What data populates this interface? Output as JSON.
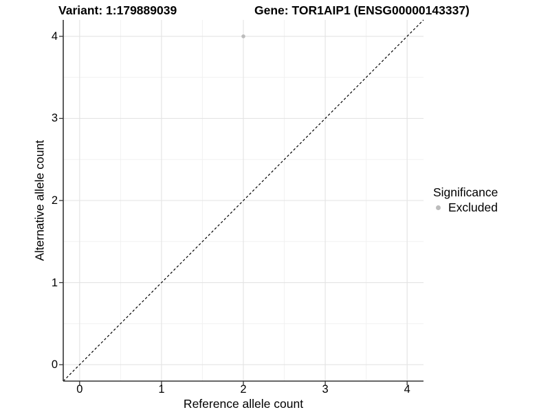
{
  "figure": {
    "titles": {
      "variant": "Variant: 1:179889039",
      "gene": "Gene: TOR1AIP1 (ENSG00000143337)"
    }
  },
  "axes": {
    "x": {
      "label": "Reference allele count",
      "ticks": [
        "0",
        "1",
        "2",
        "3",
        "4"
      ]
    },
    "y": {
      "label": "Alternative allele count",
      "ticks": [
        "0",
        "1",
        "2",
        "3",
        "4"
      ]
    }
  },
  "legend": {
    "title": "Significance",
    "items": [
      {
        "label": "Excluded",
        "color": "#bcbcbc"
      }
    ]
  },
  "colors": {
    "grid_major": "#e3e3e3",
    "grid_minor": "#f1f1f1",
    "axis_line": "#333333",
    "reference_line": "#000000",
    "excluded_point": "#bcbcbc"
  },
  "chart_data": {
    "type": "scatter",
    "title": "Variant: 1:179889039 | Gene: TOR1AIP1 (ENSG00000143337)",
    "xlabel": "Reference allele count",
    "ylabel": "Alternative allele count",
    "xlim": [
      -0.2,
      4.2
    ],
    "ylim": [
      -0.2,
      4.2
    ],
    "x_ticks": [
      0,
      1,
      2,
      3,
      4
    ],
    "y_ticks": [
      0,
      1,
      2,
      3,
      4
    ],
    "minor_gridlines": [
      0.5,
      1.5,
      2.5,
      3.5
    ],
    "grid": "major and minor gridlines, light gray on white",
    "legend_position": "right",
    "series": [
      {
        "name": "Excluded",
        "color": "#bcbcbc",
        "points": [
          {
            "x": 2,
            "y": 4
          }
        ]
      }
    ],
    "reference_line": {
      "type": "identity",
      "slope": 1,
      "intercept": 0,
      "style": "dashed",
      "color": "#000000"
    }
  }
}
